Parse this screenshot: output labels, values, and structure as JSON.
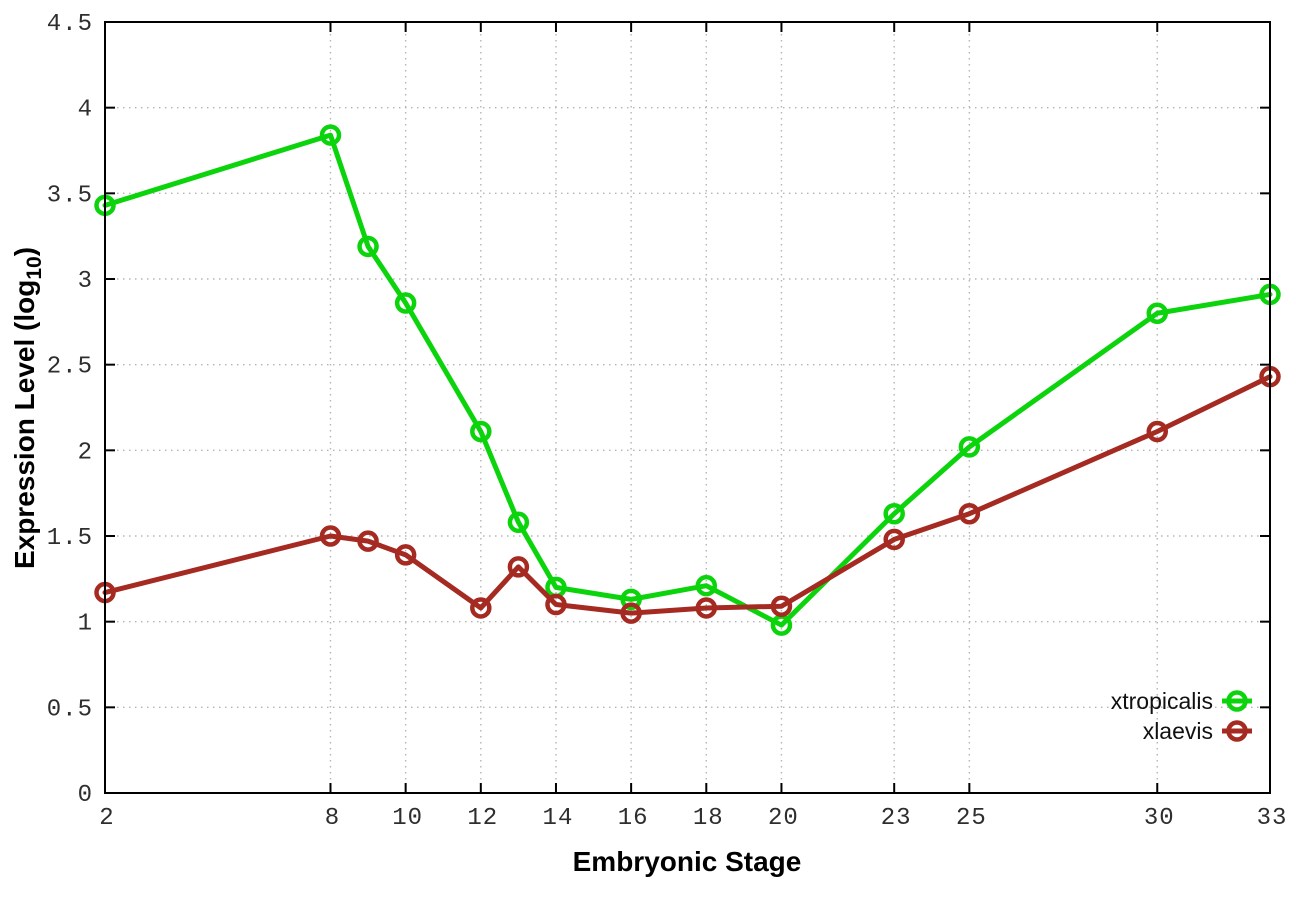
{
  "figure": {
    "background": "#ffffff",
    "border_color": "#000000",
    "grid_color": "#b5b5b5",
    "tick_label_color": "#2e2e2e"
  },
  "chart_data": {
    "type": "line",
    "title": "",
    "xlabel": "Embryonic Stage",
    "ylabel": "Expression Level (log10)",
    "ylabel_parts": {
      "main": "Expression Level (log",
      "sub": "10",
      "close": ")"
    },
    "xlim": [
      2,
      33
    ],
    "ylim": [
      0,
      4.5
    ],
    "x_ticks": [
      2,
      8,
      10,
      12,
      14,
      16,
      18,
      20,
      23,
      25,
      30,
      33
    ],
    "y_ticks": [
      0,
      0.5,
      1,
      1.5,
      2,
      2.5,
      3,
      3.5,
      4,
      4.5
    ],
    "grid": true,
    "legend_position": "bottom-right",
    "marker": "open-circle",
    "x": [
      2,
      8,
      9,
      10,
      12,
      13,
      14,
      16,
      18,
      20,
      23,
      25,
      30,
      33
    ],
    "series": [
      {
        "name": "xtropicalis",
        "color": "#0cd40c",
        "values": [
          3.43,
          3.84,
          3.19,
          2.86,
          2.11,
          1.58,
          1.2,
          1.13,
          1.21,
          0.98,
          1.63,
          2.02,
          2.8,
          2.91
        ]
      },
      {
        "name": "xlaevis",
        "color": "#a52a21",
        "values": [
          1.17,
          1.5,
          1.47,
          1.39,
          1.08,
          1.32,
          1.1,
          1.05,
          1.08,
          1.09,
          1.48,
          1.63,
          2.11,
          2.43
        ]
      }
    ]
  }
}
